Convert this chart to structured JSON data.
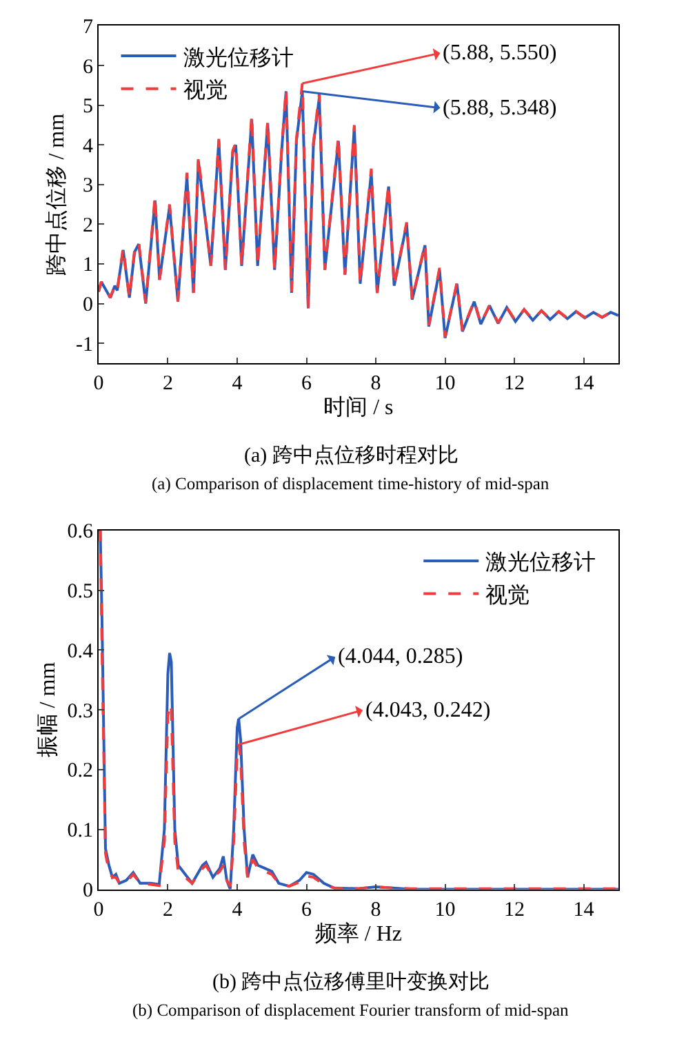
{
  "chart_data": [
    {
      "type": "line",
      "xlabel": "时间 / s",
      "ylabel": "跨中点位移 / mm",
      "xlim": [
        0,
        15
      ],
      "xticks": [
        0,
        2,
        4,
        6,
        8,
        10,
        12,
        14
      ],
      "ylim": [
        -1.5,
        7
      ],
      "yticks": [
        -1,
        0,
        1,
        2,
        3,
        4,
        5,
        6,
        7
      ],
      "legend": "top left",
      "marker": "none",
      "x": [
        0,
        0.08,
        0.34,
        0.47,
        0.54,
        0.71,
        0.89,
        1.04,
        1.16,
        1.36,
        1.63,
        1.76,
        2.05,
        2.29,
        2.55,
        2.74,
        2.88,
        3.24,
        3.47,
        3.66,
        3.87,
        3.96,
        4.13,
        4.42,
        4.59,
        4.88,
        5.08,
        5.28,
        5.41,
        5.57,
        5.71,
        5.88,
        6.05,
        6.2,
        6.37,
        6.53,
        6.92,
        7.11,
        7.38,
        7.55,
        7.87,
        8.04,
        8.37,
        8.53,
        8.89,
        9.05,
        9.42,
        9.53,
        9.84,
        10.0,
        10.34,
        10.5,
        10.84,
        11.03,
        11.28,
        11.53,
        11.78,
        12.03,
        12.28,
        12.53,
        12.78,
        13.03,
        13.28,
        13.53,
        13.78,
        14.03,
        14.28,
        14.53,
        14.78,
        15.0
      ],
      "series": [
        {
          "name": "激光位移计",
          "color": "#2a5cb8",
          "line_style": "solid",
          "values": [
            0.3,
            0.55,
            0.15,
            0.45,
            0.33,
            1.35,
            0.15,
            1.3,
            1.5,
            0.0,
            2.6,
            0.6,
            2.45,
            0.05,
            3.2,
            0.27,
            3.6,
            0.95,
            4.1,
            0.85,
            3.8,
            4.0,
            0.95,
            4.65,
            0.95,
            4.55,
            0.85,
            3.8,
            5.35,
            0.27,
            4.1,
            5.348,
            -0.12,
            4.0,
            5.2,
            0.85,
            4.1,
            0.73,
            4.45,
            0.5,
            3.3,
            0.27,
            2.95,
            0.45,
            2.0,
            0.1,
            1.47,
            -0.58,
            0.85,
            -0.87,
            0.5,
            -0.7,
            0.05,
            -0.52,
            -0.05,
            -0.5,
            -0.1,
            -0.45,
            -0.15,
            -0.42,
            -0.18,
            -0.4,
            -0.2,
            -0.38,
            -0.2,
            -0.36,
            -0.22,
            -0.35,
            -0.22,
            -0.3
          ]
        },
        {
          "name": "视觉",
          "color": "#f03c3c",
          "line_style": "dashed",
          "values": [
            0.3,
            0.55,
            0.15,
            0.45,
            0.33,
            1.4,
            0.15,
            1.35,
            1.55,
            0.02,
            2.7,
            0.6,
            2.5,
            0.05,
            3.3,
            0.27,
            3.7,
            0.95,
            4.15,
            0.85,
            3.85,
            4.05,
            0.95,
            4.75,
            0.95,
            4.6,
            0.85,
            3.85,
            5.4,
            0.3,
            4.15,
            5.55,
            -0.1,
            4.05,
            5.3,
            0.85,
            4.2,
            0.73,
            4.5,
            0.5,
            3.4,
            0.27,
            3.0,
            0.45,
            2.05,
            0.1,
            1.5,
            -0.55,
            0.9,
            -0.85,
            0.52,
            -0.68,
            0.07,
            -0.5,
            -0.05,
            -0.48,
            -0.1,
            -0.43,
            -0.15,
            -0.4,
            -0.18,
            -0.38,
            -0.2,
            -0.37,
            -0.2,
            -0.35,
            -0.22,
            -0.34,
            -0.22,
            -0.3
          ]
        }
      ],
      "annotations": [
        {
          "text": "(5.88, 5.550)",
          "x": 5.88,
          "y": 5.55
        },
        {
          "text": "(5.88, 5.348)",
          "x": 5.88,
          "y": 5.348
        },
        "(a) 跨中点位移时程对比",
        "(a) Comparison of displacement time-history of mid-span"
      ]
    },
    {
      "type": "line",
      "xlabel": "频率 / Hz",
      "ylabel": "振幅 / mm",
      "xlim": [
        0,
        15
      ],
      "xticks": [
        0,
        2,
        4,
        6,
        8,
        10,
        12,
        14
      ],
      "ylim": [
        0,
        0.6
      ],
      "yticks": [
        0,
        0.1,
        0.2,
        0.3,
        0.4,
        0.5,
        0.6
      ],
      "legend": "top right",
      "marker": "none",
      "x": [
        0,
        0.05,
        0.1,
        0.2,
        0.3,
        0.4,
        0.5,
        0.6,
        0.8,
        1.0,
        1.2,
        1.5,
        1.75,
        1.9,
        2.0,
        2.05,
        2.1,
        2.2,
        2.3,
        2.5,
        2.7,
        3.0,
        3.1,
        3.3,
        3.5,
        3.6,
        3.7,
        3.8,
        3.9,
        4.0,
        4.044,
        4.1,
        4.2,
        4.3,
        4.4,
        4.45,
        4.6,
        4.8,
        5.0,
        5.2,
        5.5,
        5.8,
        6.0,
        6.2,
        6.5,
        6.8,
        7.5,
        8.0,
        8.5,
        9.0,
        15.0
      ],
      "series": [
        {
          "name": "激光位移计",
          "color": "#2a5cb8",
          "line_style": "solid",
          "values": [
            0.6,
            0.6,
            0.45,
            0.068,
            0.04,
            0.02,
            0.025,
            0.01,
            0.015,
            0.028,
            0.01,
            0.01,
            0.008,
            0.1,
            0.36,
            0.395,
            0.38,
            0.1,
            0.04,
            0.025,
            0.01,
            0.04,
            0.045,
            0.02,
            0.035,
            0.055,
            0.015,
            0.0,
            0.1,
            0.27,
            0.285,
            0.25,
            0.1,
            0.02,
            0.045,
            0.058,
            0.04,
            0.035,
            0.03,
            0.01,
            0.005,
            0.015,
            0.028,
            0.025,
            0.01,
            0.002,
            0.001,
            0.004,
            0.002,
            0.0,
            0.0
          ]
        },
        {
          "name": "视觉",
          "color": "#f03c3c",
          "line_style": "dashed",
          "values": [
            0.6,
            0.6,
            0.4,
            0.06,
            0.03,
            0.02,
            0.02,
            0.01,
            0.012,
            0.025,
            0.01,
            0.008,
            0.006,
            0.08,
            0.29,
            0.31,
            0.3,
            0.08,
            0.03,
            0.02,
            0.01,
            0.035,
            0.04,
            0.02,
            0.03,
            0.04,
            0.015,
            0.005,
            0.08,
            0.23,
            0.242,
            0.22,
            0.08,
            0.02,
            0.04,
            0.05,
            0.035,
            0.03,
            0.025,
            0.01,
            0.005,
            0.012,
            0.022,
            0.02,
            0.008,
            0.002,
            0.001,
            0.004,
            0.002,
            0.001,
            0.001
          ]
        }
      ],
      "annotations": [
        {
          "text": "(4.044, 0.285)",
          "x": 4.044,
          "y": 0.285
        },
        {
          "text": "(4.043, 0.242)",
          "x": 4.043,
          "y": 0.242
        },
        "(b) 跨中点位移傅里叶变换对比",
        "(b) Comparison of displacement Fourier transform of mid-span"
      ]
    }
  ]
}
